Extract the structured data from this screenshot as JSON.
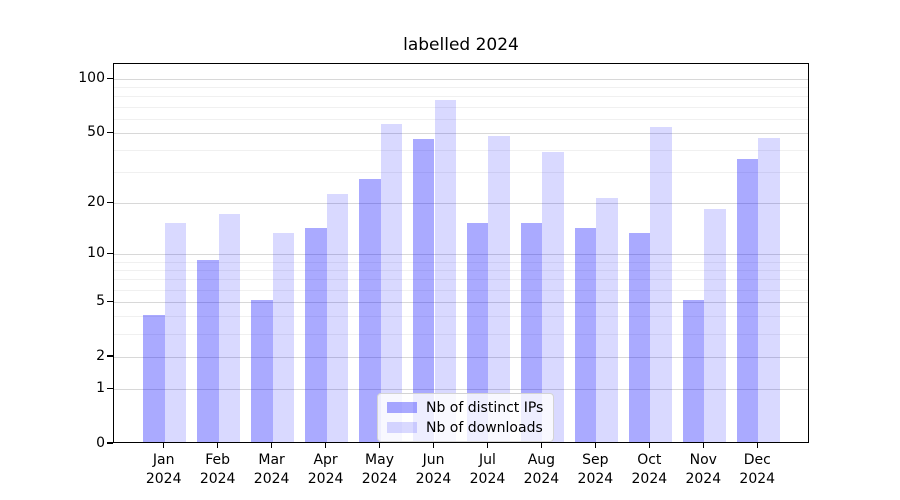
{
  "chart_data": {
    "type": "bar",
    "title": "labelled 2024",
    "categories": [
      "Jan 2024",
      "Feb 2024",
      "Mar 2024",
      "Apr 2024",
      "May 2024",
      "Jun 2024",
      "Jul 2024",
      "Aug 2024",
      "Sep 2024",
      "Oct 2024",
      "Nov 2024",
      "Dec 2024"
    ],
    "x_tick_months": [
      "Jan",
      "Feb",
      "Mar",
      "Apr",
      "May",
      "Jun",
      "Jul",
      "Aug",
      "Sep",
      "Oct",
      "Nov",
      "Dec"
    ],
    "x_tick_year": "2024",
    "series": [
      {
        "name": "Nb of distinct IPs",
        "hex": "#aaaaff",
        "fill": "rgba(0,0,255,0.335)",
        "values": [
          4,
          9,
          5,
          14,
          27,
          45,
          15,
          15,
          14,
          13,
          5,
          35
        ]
      },
      {
        "name": "Nb of downloads",
        "hex": "#d9d9ff",
        "fill": "rgba(0,0,255,0.15)",
        "values": [
          15,
          17,
          13,
          22,
          55,
          75,
          47,
          38,
          21,
          53,
          18,
          46
        ]
      }
    ],
    "yscale": "symlog-like (position proportional to log(1+v))",
    "ylim": [
      0,
      121.5
    ],
    "y_major_ticks": [
      0,
      1,
      2,
      5,
      10,
      20,
      50,
      100
    ],
    "y_minor_gridlines": [
      3,
      4,
      6,
      7,
      8,
      9,
      30,
      40,
      60,
      70,
      80,
      90
    ],
    "grid": true,
    "legend": {
      "position": "lower-center",
      "entries": [
        "Nb of distinct IPs",
        "Nb of downloads"
      ]
    }
  },
  "colors": {
    "major_grid": "#d8d8d8",
    "minor_grid": "#f0f0f0",
    "spine": "#000000",
    "legend_border": "#d4d4d4",
    "background": "#ffffff"
  }
}
